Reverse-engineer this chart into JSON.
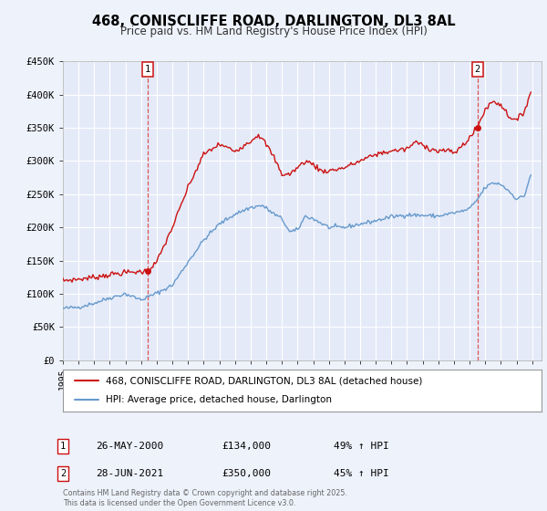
{
  "title": "468, CONISCLIFFE ROAD, DARLINGTON, DL3 8AL",
  "subtitle": "Price paid vs. HM Land Registry's House Price Index (HPI)",
  "background_color": "#eef2fb",
  "plot_bg_color": "#e4eaf8",
  "grid_color": "#ffffff",
  "ylim": [
    0,
    450000
  ],
  "yticks": [
    0,
    50000,
    100000,
    150000,
    200000,
    250000,
    300000,
    350000,
    400000,
    450000
  ],
  "xlim_start": 1995.0,
  "xlim_end": 2025.6,
  "xtick_years": [
    1995,
    1996,
    1997,
    1998,
    1999,
    2000,
    2001,
    2002,
    2003,
    2004,
    2005,
    2006,
    2007,
    2008,
    2009,
    2010,
    2011,
    2012,
    2013,
    2014,
    2015,
    2016,
    2017,
    2018,
    2019,
    2020,
    2021,
    2022,
    2023,
    2024,
    2025
  ],
  "hpi_color": "#6699cc",
  "sale_color": "#cc1111",
  "vline_color": "#dd4444",
  "annotation_color": "#cc1111",
  "legend_label_sale": "468, CONISCLIFFE ROAD, DARLINGTON, DL3 8AL (detached house)",
  "legend_label_hpi": "HPI: Average price, detached house, Darlington",
  "sale1_date": "26-MAY-2000",
  "sale1_price": "£134,000",
  "sale1_pct": "49% ↑ HPI",
  "sale2_date": "28-JUN-2021",
  "sale2_price": "£350,000",
  "sale2_pct": "45% ↑ HPI",
  "footer": "Contains HM Land Registry data © Crown copyright and database right 2025.\nThis data is licensed under the Open Government Licence v3.0.",
  "sale1_x": 2000.4,
  "sale1_y": 134000,
  "sale2_x": 2021.5,
  "sale2_y": 350000
}
